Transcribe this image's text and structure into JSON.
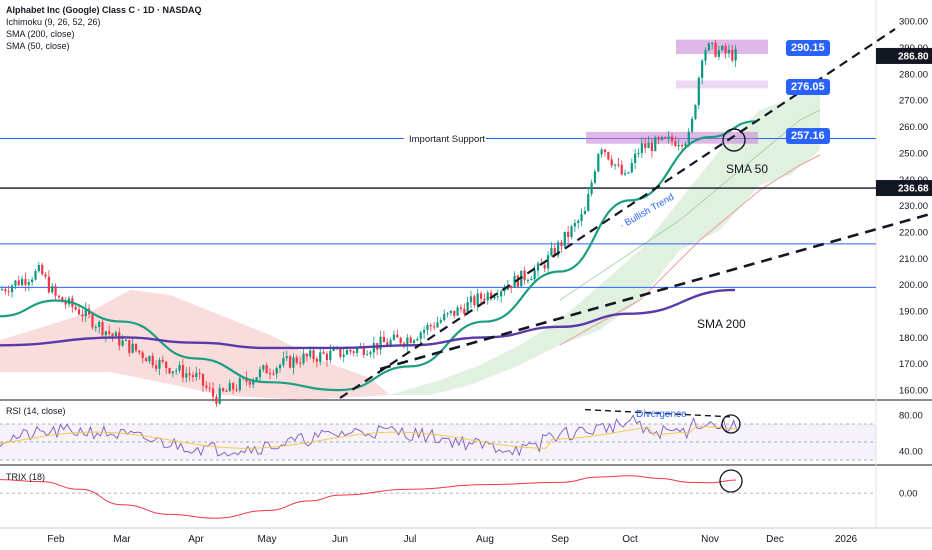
{
  "header": {
    "title": "Alphabet Inc (Google) Class C · 1D · NASDAQ",
    "indicators": [
      "Ichimoku (9, 26, 52, 26)",
      "SMA (200, close)",
      "SMA (50, close)"
    ]
  },
  "price_axis": {
    "ticks": [
      "300.00",
      "290.00",
      "280.00",
      "270.00",
      "260.00",
      "250.00",
      "240.00",
      "230.00",
      "220.00",
      "210.00",
      "200.00",
      "190.00",
      "180.00",
      "170.00",
      "160.00"
    ],
    "current_price": "286.80",
    "level_tag": "236.68"
  },
  "rsi_pane": {
    "label": "RSI (14, close)",
    "ticks": [
      "80.00",
      "40.00"
    ],
    "annotation": "Divergence"
  },
  "trix_pane": {
    "label": "TRIX (18)",
    "ticks": [
      "0.00"
    ]
  },
  "time_axis": {
    "labels": [
      "Feb",
      "Mar",
      "Apr",
      "May",
      "Jun",
      "Jul",
      "Aug",
      "Sep",
      "Oct",
      "Nov",
      "Dec",
      "2026"
    ]
  },
  "annotations": {
    "important_support": "Important Support",
    "bullish_trend": "Bullish Trend",
    "sma50": "SMA 50",
    "sma200": "SMA 200",
    "tag_top": "290.15",
    "tag_mid": "276.05",
    "tag_low": "257.16"
  },
  "colors": {
    "up": "#089981",
    "down": "#f23645",
    "sma50": "#1b9e82",
    "sma200": "#5b3aa8",
    "hline": "#2962ff",
    "tag_bg": "#2962ff",
    "zone": "#c77dd6",
    "cloud_bull": "#a5d6a7",
    "cloud_bear": "#ef9a9a",
    "rsi": "#7e57c2",
    "trix": "#f23645"
  },
  "chart_data": {
    "type": "line",
    "title": "Alphabet Inc (Google) Class C · 1D · NASDAQ",
    "ylim": [
      157,
      305
    ],
    "price_path_keyframes": {
      "x": [
        "Jan",
        "early Feb",
        "mid Feb",
        "Mar",
        "Apr",
        "Apr low",
        "May",
        "Jun",
        "Jul",
        "Aug",
        "late Aug",
        "early Sep",
        "mid Sep",
        "Oct",
        "Oct low",
        "late Oct",
        "early Nov",
        "Nov"
      ],
      "close": [
        198,
        205,
        195,
        178,
        165,
        157,
        168,
        174,
        180,
        196,
        206,
        213,
        227,
        254,
        240,
        256,
        290,
        286.8
      ]
    },
    "sma50_keyframes": {
      "x": [
        "Jan",
        "Feb",
        "Mar",
        "Apr",
        "May",
        "Jun",
        "Jul",
        "Aug",
        "Sep",
        "Oct",
        "Nov"
      ],
      "values": [
        188,
        194,
        186,
        172,
        163,
        160,
        169,
        186,
        205,
        232,
        256
      ]
    },
    "sma200_keyframes": {
      "x": [
        "Jan",
        "Mar",
        "Apr",
        "May",
        "Jun",
        "Jul",
        "Aug",
        "Sep",
        "Oct",
        "Nov"
      ],
      "values": [
        177,
        180,
        178,
        176,
        176,
        177,
        180,
        184,
        189,
        198
      ]
    },
    "horizontal_levels": [
      255.5,
      236.68,
      215.5,
      199
    ],
    "zones": [
      [
        287.5,
        293
      ],
      [
        274.5,
        277.5
      ],
      [
        253.5,
        258
      ]
    ],
    "rsi_ylim": [
      30,
      90
    ],
    "trix_ylim": [
      -0.8,
      0.6
    ]
  }
}
